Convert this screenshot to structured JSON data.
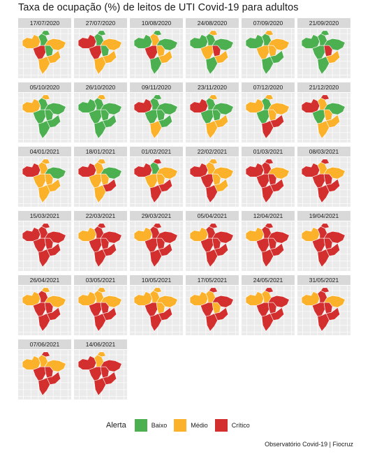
{
  "title": "Taxa de ocupação (%) de leitos de UTI Covid-19 para adultos",
  "colors": {
    "panel_bg": "#ebebeb",
    "grid_line": "#ffffff",
    "strip_bg": "#d9d9d9",
    "Baixo": "#4caf50",
    "Médio": "#fbb12a",
    "Crítico": "#d32f2f"
  },
  "legend": {
    "title": "Alerta",
    "items": [
      {
        "label": "Baixo",
        "color": "#4caf50"
      },
      {
        "label": "Médio",
        "color": "#fbb12a"
      },
      {
        "label": "Crítico",
        "color": "#d32f2f"
      }
    ]
  },
  "credit": "Observatório Covid-19 | Fiocruz",
  "map_data": {
    "categories": [
      "Baixo",
      "Médio",
      "Crítico"
    ],
    "regions": [
      "north-west",
      "north-east",
      "north-tip",
      "north-east-coast",
      "centre-west",
      "centre",
      "south-east",
      "south"
    ],
    "panels": [
      {
        "date": "17/07/2020",
        "status": [
          "Médio",
          "Baixo",
          "Baixo",
          "Médio",
          "Crítico",
          "Baixo",
          "Médio",
          "Médio"
        ]
      },
      {
        "date": "27/07/2020",
        "status": [
          "Crítico",
          "Baixo",
          "Baixo",
          "Médio",
          "Crítico",
          "Baixo",
          "Médio",
          "Médio"
        ]
      },
      {
        "date": "10/08/2020",
        "status": [
          "Baixo",
          "Médio",
          "Baixo",
          "Baixo",
          "Crítico",
          "Médio",
          "Médio",
          "Baixo"
        ]
      },
      {
        "date": "24/08/2020",
        "status": [
          "Baixo",
          "Baixo",
          "Médio",
          "Baixo",
          "Médio",
          "Crítico",
          "Médio",
          "Baixo"
        ]
      },
      {
        "date": "07/09/2020",
        "status": [
          "Baixo",
          "Baixo",
          "Médio",
          "Médio",
          "Médio",
          "Médio",
          "Baixo",
          "Baixo"
        ]
      },
      {
        "date": "21/09/2020",
        "status": [
          "Baixo",
          "Baixo",
          "Baixo",
          "Baixo",
          "Baixo",
          "Crítico",
          "Médio",
          "Baixo"
        ]
      },
      {
        "date": "05/10/2020",
        "status": [
          "Médio",
          "Baixo",
          "Médio",
          "Baixo",
          "Baixo",
          "Baixo",
          "Baixo",
          "Baixo"
        ]
      },
      {
        "date": "26/10/2020",
        "status": [
          "Baixo",
          "Baixo",
          "Médio",
          "Baixo",
          "Baixo",
          "Baixo",
          "Baixo",
          "Baixo"
        ]
      },
      {
        "date": "09/11/2020",
        "status": [
          "Crítico",
          "Baixo",
          "Baixo",
          "Baixo",
          "Baixo",
          "Baixo",
          "Baixo",
          "Médio"
        ]
      },
      {
        "date": "23/11/2020",
        "status": [
          "Crítico",
          "Baixo",
          "Médio",
          "Baixo",
          "Baixo",
          "Baixo",
          "Médio",
          "Médio"
        ]
      },
      {
        "date": "07/12/2020",
        "status": [
          "Médio",
          "Baixo",
          "Médio",
          "Médio",
          "Baixo",
          "Médio",
          "Crítico",
          "Crítico"
        ]
      },
      {
        "date": "21/12/2020",
        "status": [
          "Crítico",
          "Médio",
          "Crítico",
          "Baixo",
          "Baixo",
          "Médio",
          "Médio",
          "Médio"
        ]
      },
      {
        "date": "04/01/2021",
        "status": [
          "Crítico",
          "Médio",
          "Médio",
          "Baixo",
          "Médio",
          "Médio",
          "Médio",
          "Médio"
        ]
      },
      {
        "date": "18/01/2021",
        "status": [
          "Crítico",
          "Médio",
          "Médio",
          "Baixo",
          "Médio",
          "Médio",
          "Crítico",
          "Médio"
        ]
      },
      {
        "date": "01/02/2021",
        "status": [
          "Crítico",
          "Baixo",
          "Crítico",
          "Médio",
          "Médio",
          "Médio",
          "Crítico",
          "Crítico"
        ]
      },
      {
        "date": "22/02/2021",
        "status": [
          "Crítico",
          "Médio",
          "Médio",
          "Médio",
          "Crítico",
          "Médio",
          "Médio",
          "Crítico"
        ]
      },
      {
        "date": "01/03/2021",
        "status": [
          "Crítico",
          "Crítico",
          "Crítico",
          "Médio",
          "Crítico",
          "Crítico",
          "Crítico",
          "Crítico"
        ]
      },
      {
        "date": "08/03/2021",
        "status": [
          "Crítico",
          "Médio",
          "Crítico",
          "Médio",
          "Crítico",
          "Crítico",
          "Crítico",
          "Crítico"
        ]
      },
      {
        "date": "15/03/2021",
        "status": [
          "Crítico",
          "Crítico",
          "Crítico",
          "Crítico",
          "Crítico",
          "Crítico",
          "Crítico",
          "Crítico"
        ]
      },
      {
        "date": "22/03/2021",
        "status": [
          "Médio",
          "Crítico",
          "Crítico",
          "Crítico",
          "Crítico",
          "Crítico",
          "Crítico",
          "Crítico"
        ]
      },
      {
        "date": "29/03/2021",
        "status": [
          "Médio",
          "Crítico",
          "Crítico",
          "Crítico",
          "Crítico",
          "Crítico",
          "Crítico",
          "Crítico"
        ]
      },
      {
        "date": "05/04/2021",
        "status": [
          "Médio",
          "Crítico",
          "Crítico",
          "Crítico",
          "Crítico",
          "Crítico",
          "Crítico",
          "Crítico"
        ]
      },
      {
        "date": "12/04/2021",
        "status": [
          "Médio",
          "Crítico",
          "Crítico",
          "Crítico",
          "Crítico",
          "Crítico",
          "Crítico",
          "Crítico"
        ]
      },
      {
        "date": "19/04/2021",
        "status": [
          "Médio",
          "Crítico",
          "Crítico",
          "Crítico",
          "Crítico",
          "Crítico",
          "Crítico",
          "Crítico"
        ]
      },
      {
        "date": "26/04/2021",
        "status": [
          "Médio",
          "Crítico",
          "Médio",
          "Médio",
          "Crítico",
          "Crítico",
          "Crítico",
          "Crítico"
        ]
      },
      {
        "date": "03/05/2021",
        "status": [
          "Médio",
          "Médio",
          "Médio",
          "Médio",
          "Crítico",
          "Crítico",
          "Crítico",
          "Crítico"
        ]
      },
      {
        "date": "10/05/2021",
        "status": [
          "Médio",
          "Médio",
          "Médio",
          "Médio",
          "Crítico",
          "Médio",
          "Crítico",
          "Crítico"
        ]
      },
      {
        "date": "17/05/2021",
        "status": [
          "Médio",
          "Médio",
          "Crítico",
          "Crítico",
          "Crítico",
          "Médio",
          "Crítico",
          "Crítico"
        ]
      },
      {
        "date": "24/05/2021",
        "status": [
          "Médio",
          "Médio",
          "Crítico",
          "Crítico",
          "Crítico",
          "Crítico",
          "Crítico",
          "Crítico"
        ]
      },
      {
        "date": "31/05/2021",
        "status": [
          "Médio",
          "Crítico",
          "Crítico",
          "Médio",
          "Crítico",
          "Crítico",
          "Crítico",
          "Crítico"
        ]
      },
      {
        "date": "07/06/2021",
        "status": [
          "Médio",
          "Médio",
          "Crítico",
          "Médio",
          "Crítico",
          "Crítico",
          "Crítico",
          "Crítico"
        ]
      },
      {
        "date": "14/06/2021",
        "status": [
          "Crítico",
          "Médio",
          "Médio",
          "Crítico",
          "Crítico",
          "Crítico",
          "Crítico",
          "Crítico"
        ]
      }
    ]
  }
}
